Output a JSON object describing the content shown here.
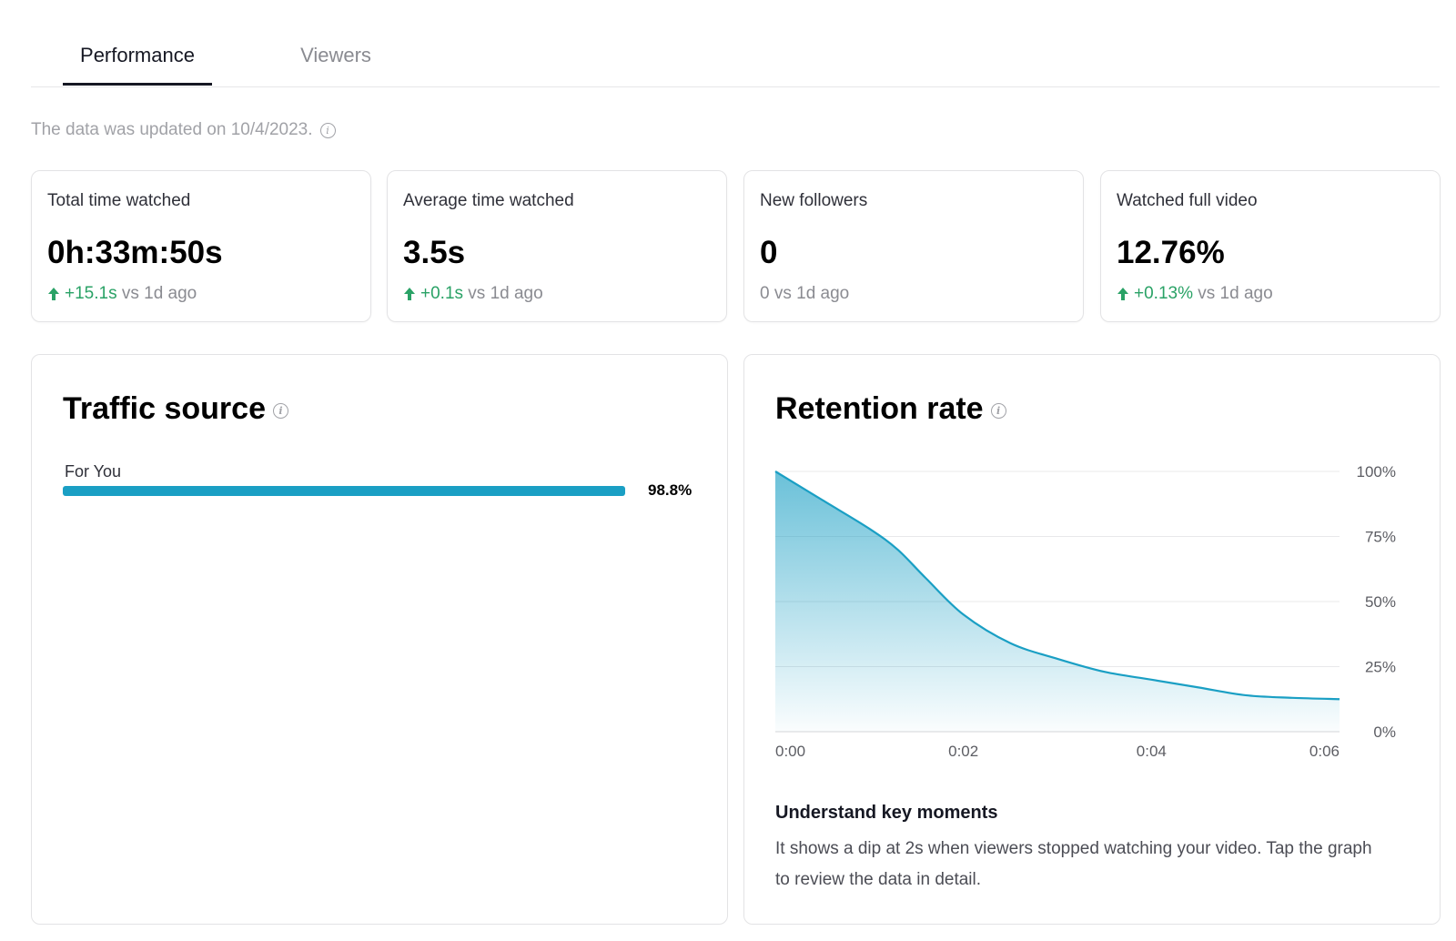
{
  "tabs": [
    {
      "label": "Performance",
      "active": true
    },
    {
      "label": "Viewers",
      "active": false
    }
  ],
  "updated_text": "The data was updated on 10/4/2023.",
  "stats": [
    {
      "label": "Total time watched",
      "value": "0h:33m:50s",
      "delta": "+15.1s",
      "delta_suffix": "vs 1d ago",
      "trend": "up"
    },
    {
      "label": "Average time watched",
      "value": "3.5s",
      "delta": "+0.1s",
      "delta_suffix": "vs 1d ago",
      "trend": "up"
    },
    {
      "label": "New followers",
      "value": "0",
      "delta": "0 vs 1d ago",
      "delta_suffix": "",
      "trend": "flat"
    },
    {
      "label": "Watched full video",
      "value": "12.76%",
      "delta": "+0.13%",
      "delta_suffix": "vs 1d ago",
      "trend": "up"
    }
  ],
  "traffic_source": {
    "title": "Traffic source",
    "rows": [
      {
        "label": "For You",
        "percent": 98.8,
        "percent_label": "98.8%"
      }
    ]
  },
  "retention": {
    "title": "Retention rate",
    "key_moments_title": "Understand key moments",
    "key_moments_text": "It shows a dip at 2s when viewers stopped watching your video. Tap the graph to review the data in detail."
  },
  "colors": {
    "accent": "#1a9fc4",
    "up": "#2aa266",
    "muted": "#8a8b91"
  },
  "chart_data": {
    "type": "area",
    "title": "Retention rate",
    "xlabel": "",
    "ylabel": "",
    "x_ticks": [
      "0:00",
      "0:02",
      "0:04",
      "0:06"
    ],
    "y_ticks": [
      "100%",
      "75%",
      "50%",
      "25%",
      "0%"
    ],
    "xlim": [
      0,
      6
    ],
    "ylim": [
      0,
      100
    ],
    "grid": true,
    "x": [
      0,
      0.5,
      1,
      1.3,
      1.6,
      2.0,
      2.5,
      3.0,
      3.5,
      4.0,
      4.5,
      5.0,
      5.5,
      6.0
    ],
    "values": [
      100,
      89,
      78,
      70,
      59,
      45,
      34,
      28,
      23,
      20,
      17,
      14,
      13,
      12.5
    ]
  }
}
